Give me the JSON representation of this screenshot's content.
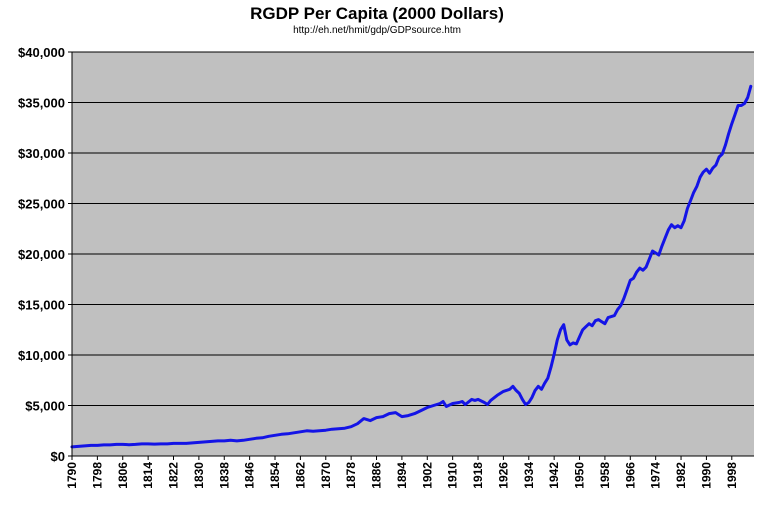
{
  "chart_data": {
    "type": "line",
    "title": "RGDP Per Capita (2000 Dollars)",
    "subtitle": "http://eh.net/hmit/gdp/GDPsource.htm",
    "xlabel": "",
    "ylabel": "",
    "xlim": [
      1790,
      2005
    ],
    "ylim": [
      0,
      40000
    ],
    "y_ticks": [
      0,
      5000,
      10000,
      15000,
      20000,
      25000,
      30000,
      35000,
      40000
    ],
    "y_tick_labels": [
      "$0",
      "$5,000",
      "$10,000",
      "$15,000",
      "$20,000",
      "$25,000",
      "$30,000",
      "$35,000",
      "$40,000"
    ],
    "x_ticks": [
      1790,
      1798,
      1806,
      1814,
      1822,
      1830,
      1838,
      1846,
      1854,
      1862,
      1870,
      1878,
      1886,
      1894,
      1902,
      1910,
      1918,
      1926,
      1934,
      1942,
      1950,
      1958,
      1966,
      1974,
      1982,
      1990,
      1998
    ],
    "x_tick_labels": [
      "1790",
      "1798",
      "1806",
      "1814",
      "1822",
      "1830",
      "1838",
      "1846",
      "1854",
      "1862",
      "1870",
      "1878",
      "1886",
      "1894",
      "1902",
      "1910",
      "1918",
      "1926",
      "1934",
      "1942",
      "1950",
      "1958",
      "1966",
      "1974",
      "1982",
      "1990",
      "1998"
    ],
    "grid": "horizontal",
    "legend": "none",
    "colors": {
      "plot_background": "#c0c0c0",
      "line": "#1414e6",
      "gridline": "#000000",
      "axis": "#000000"
    },
    "series": [
      {
        "x": [
          1790,
          1792,
          1794,
          1796,
          1798,
          1800,
          1802,
          1804,
          1806,
          1808,
          1810,
          1812,
          1814,
          1816,
          1818,
          1820,
          1822,
          1824,
          1826,
          1828,
          1830,
          1832,
          1834,
          1836,
          1838,
          1840,
          1842,
          1844,
          1846,
          1848,
          1850,
          1852,
          1854,
          1856,
          1858,
          1860,
          1862,
          1864,
          1866,
          1868,
          1870,
          1872,
          1874,
          1876,
          1878,
          1880,
          1882,
          1884,
          1886,
          1888,
          1890,
          1892,
          1893,
          1894,
          1896,
          1898,
          1900,
          1902,
          1904,
          1906,
          1907,
          1908,
          1910,
          1912,
          1913,
          1914,
          1916,
          1917,
          1918,
          1920,
          1921,
          1922,
          1924,
          1926,
          1928,
          1929,
          1930,
          1931,
          1932,
          1933,
          1934,
          1935,
          1936,
          1937,
          1938,
          1939,
          1940,
          1941,
          1942,
          1943,
          1944,
          1945,
          1946,
          1947,
          1948,
          1949,
          1950,
          1951,
          1952,
          1953,
          1954,
          1955,
          1956,
          1957,
          1958,
          1959,
          1960,
          1961,
          1962,
          1963,
          1964,
          1965,
          1966,
          1967,
          1968,
          1969,
          1970,
          1971,
          1972,
          1973,
          1974,
          1975,
          1976,
          1977,
          1978,
          1979,
          1980,
          1981,
          1982,
          1983,
          1984,
          1985,
          1986,
          1987,
          1988,
          1989,
          1990,
          1991,
          1992,
          1993,
          1994,
          1995,
          1996,
          1997,
          1998,
          1999,
          2000,
          2001,
          2002,
          2003,
          2004
        ],
        "y": [
          900,
          950,
          1000,
          1050,
          1050,
          1100,
          1100,
          1150,
          1150,
          1120,
          1150,
          1200,
          1200,
          1180,
          1200,
          1200,
          1250,
          1250,
          1250,
          1300,
          1350,
          1400,
          1450,
          1500,
          1500,
          1550,
          1500,
          1550,
          1650,
          1750,
          1800,
          1950,
          2050,
          2150,
          2200,
          2300,
          2400,
          2500,
          2450,
          2500,
          2550,
          2650,
          2700,
          2750,
          2900,
          3200,
          3700,
          3500,
          3800,
          3900,
          4200,
          4300,
          4100,
          3900,
          4000,
          4200,
          4500,
          4800,
          5000,
          5200,
          5400,
          4900,
          5200,
          5300,
          5400,
          5100,
          5600,
          5500,
          5600,
          5300,
          5100,
          5500,
          6000,
          6400,
          6600,
          6900,
          6500,
          6200,
          5600,
          5100,
          5300,
          5800,
          6500,
          6900,
          6600,
          7200,
          7700,
          8800,
          10100,
          11500,
          12500,
          13000,
          11500,
          11000,
          11200,
          11100,
          11800,
          12500,
          12800,
          13100,
          12900,
          13400,
          13500,
          13300,
          13100,
          13700,
          13800,
          13900,
          14500,
          14900,
          15600,
          16500,
          17400,
          17600,
          18200,
          18600,
          18400,
          18700,
          19500,
          20300,
          20100,
          19900,
          20800,
          21600,
          22400,
          22900,
          22600,
          22800,
          22600,
          23300,
          24500,
          25300,
          26100,
          26700,
          27600,
          28100,
          28400,
          28000,
          28500,
          28800,
          29600,
          29900,
          30800,
          31900,
          32900,
          33800,
          34700,
          34700,
          34900,
          35500,
          36600
        ]
      }
    ]
  }
}
